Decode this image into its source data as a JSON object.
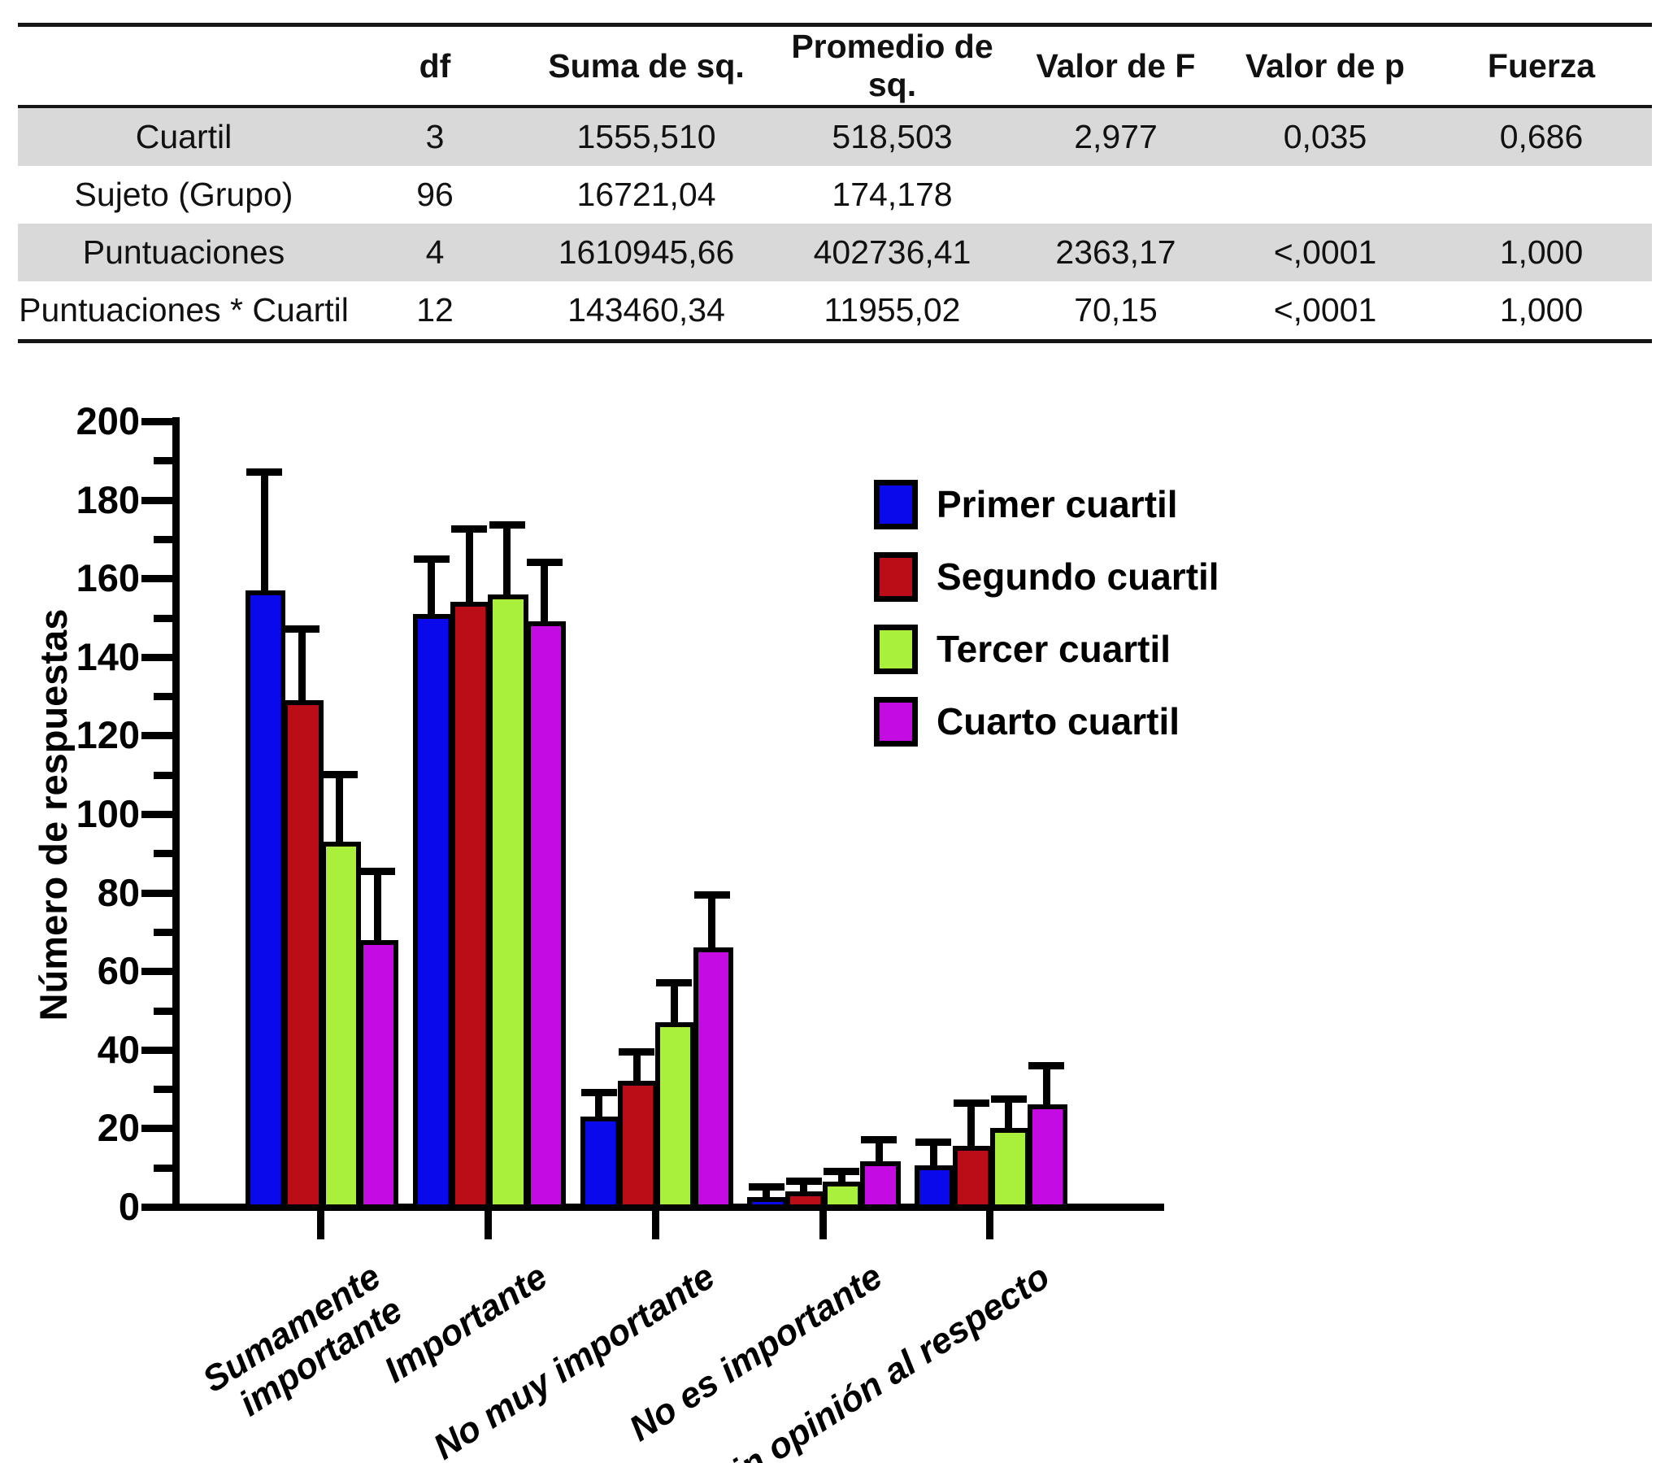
{
  "table": {
    "row_shading_color": "#D9D9D9",
    "headers": [
      "",
      "df",
      "Suma de sq.",
      "Promedio de sq.",
      "Valor de F",
      "Valor de p",
      "Fuerza"
    ],
    "rows": [
      {
        "label": "Cuartil",
        "shaded": true,
        "values": [
          "3",
          "1555,510",
          "518,503",
          "2,977",
          "0,035",
          "0,686"
        ]
      },
      {
        "label": "Sujeto (Grupo)",
        "shaded": false,
        "values": [
          "96",
          "16721,04",
          "174,178",
          "",
          "",
          ""
        ]
      },
      {
        "label": "Puntuaciones",
        "shaded": true,
        "values": [
          "4",
          "1610945,66",
          "402736,41",
          "2363,17",
          "<,0001",
          "1,000"
        ]
      },
      {
        "label": "Puntuaciones * Cuartil",
        "shaded": false,
        "values": [
          "12",
          "143460,34",
          "11955,02",
          "70,15",
          "<,0001",
          "1,000"
        ]
      }
    ]
  },
  "chart_data": {
    "type": "bar",
    "title": "",
    "xlabel": "",
    "ylabel": "Número de respuestas",
    "ylim": [
      0,
      200
    ],
    "yticks": [
      0,
      20,
      40,
      60,
      80,
      100,
      120,
      140,
      160,
      180,
      200
    ],
    "ytick_minor_step": 10,
    "grid": false,
    "legend_position": "inside-upper-right",
    "error_bars": "plus-direction",
    "categories": [
      "Sumamente\nimportante",
      "Importante",
      "No muy importante",
      "No es importante",
      "Sin opinión al respecto"
    ],
    "series": [
      {
        "name": "Primer cuartil",
        "color": "#0909EC",
        "values": [
          157,
          151,
          23,
          2.5,
          10.5
        ],
        "error_plus": [
          30,
          14,
          6,
          2.5,
          6
        ]
      },
      {
        "name": "Segundo cuartil",
        "color": "#BB0D18",
        "values": [
          129,
          154,
          32,
          4,
          15.5
        ],
        "error_plus": [
          18,
          18.5,
          7.5,
          2.5,
          11
        ]
      },
      {
        "name": "Tercer cuartil",
        "color": "#A9F03C",
        "values": [
          93,
          156,
          47,
          6.5,
          20
        ],
        "error_plus": [
          17,
          17.5,
          10,
          2.5,
          7.5
        ]
      },
      {
        "name": "Cuarto cuartil",
        "color": "#C40BE2",
        "values": [
          68,
          149,
          66,
          11.5,
          26
        ],
        "error_plus": [
          17.5,
          15,
          13.5,
          5.5,
          10
        ]
      }
    ]
  }
}
